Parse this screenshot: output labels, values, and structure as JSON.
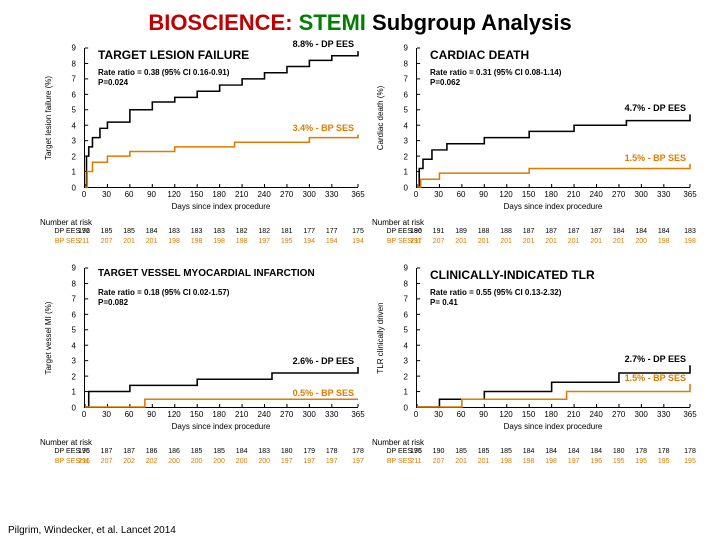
{
  "title_parts": [
    {
      "text": "BIOSCIENCE:",
      "color": "#c00000"
    },
    {
      "text": " STEMI",
      "color": "#008000"
    },
    {
      "text": " Subgroup Analysis",
      "color": "#000000"
    }
  ],
  "citation": "Pilgrim, Windecker, et al. Lancet 2014",
  "common": {
    "xlabel": "Days since index procedure",
    "xlim": [
      0,
      365
    ],
    "ylim": [
      0,
      9
    ],
    "xticks": [
      0,
      30,
      60,
      90,
      120,
      150,
      180,
      210,
      240,
      270,
      300,
      330,
      365
    ],
    "yticks": [
      0,
      1,
      2,
      3,
      4,
      5,
      6,
      7,
      8,
      9
    ],
    "colors": {
      "black": "#000000",
      "orange": "#e07b00"
    },
    "nar_title": "Number at risk",
    "nar_labels": [
      "DP EES",
      "BP SES"
    ],
    "nar_colors": [
      "#000000",
      "#e07b00"
    ]
  },
  "panels": [
    {
      "title": "TARGET LESION FAILURE",
      "ylabel": "Target lesion failure (%)",
      "rate": "Rate ratio = 0.38 (95% CI 0.16-0.91)",
      "p": "P=0.024",
      "end_black": {
        "text": "8.8% - DP EES",
        "y": 8.8
      },
      "end_orange": {
        "text": "3.4% - BP SES",
        "y": 3.4
      },
      "black": [
        [
          0,
          0
        ],
        [
          2,
          2.0
        ],
        [
          5,
          2.6
        ],
        [
          10,
          3.2
        ],
        [
          20,
          3.8
        ],
        [
          30,
          4.2
        ],
        [
          60,
          5.0
        ],
        [
          90,
          5.5
        ],
        [
          120,
          5.8
        ],
        [
          150,
          6.2
        ],
        [
          180,
          6.6
        ],
        [
          210,
          7.0
        ],
        [
          240,
          7.4
        ],
        [
          270,
          7.8
        ],
        [
          300,
          8.2
        ],
        [
          330,
          8.5
        ],
        [
          365,
          8.8
        ]
      ],
      "orange": [
        [
          0,
          0
        ],
        [
          3,
          1.0
        ],
        [
          10,
          1.6
        ],
        [
          30,
          2.0
        ],
        [
          60,
          2.3
        ],
        [
          120,
          2.6
        ],
        [
          200,
          2.9
        ],
        [
          300,
          3.2
        ],
        [
          365,
          3.4
        ]
      ],
      "nar": [
        [
          "196",
          "185",
          "185",
          "184",
          "183",
          "183",
          "183",
          "182",
          "182",
          "181",
          "177",
          "177",
          "175",
          "172"
        ],
        [
          "211",
          "207",
          "201",
          "201",
          "198",
          "198",
          "198",
          "198",
          "197",
          "195",
          "194",
          "194",
          "194",
          ""
        ]
      ]
    },
    {
      "title": "CARDIAC DEATH",
      "ylabel": "Cardiac death (%)",
      "rate": "Rate ratio = 0.31 (95% CI 0.08-1.14)",
      "p": "P=0.062",
      "end_black": {
        "text": "4.7% - DP EES",
        "y": 4.7
      },
      "end_orange": {
        "text": "1.5% - BP SES",
        "y": 1.5
      },
      "black": [
        [
          0,
          0
        ],
        [
          3,
          1.2
        ],
        [
          8,
          1.8
        ],
        [
          20,
          2.4
        ],
        [
          40,
          2.8
        ],
        [
          90,
          3.2
        ],
        [
          150,
          3.6
        ],
        [
          210,
          4.0
        ],
        [
          280,
          4.3
        ],
        [
          365,
          4.7
        ]
      ],
      "orange": [
        [
          0,
          0
        ],
        [
          5,
          0.5
        ],
        [
          30,
          0.9
        ],
        [
          150,
          1.2
        ],
        [
          365,
          1.5
        ]
      ],
      "nar": [
        [
          "196",
          "191",
          "189",
          "188",
          "188",
          "187",
          "187",
          "187",
          "187",
          "184",
          "184",
          "184",
          "183",
          "180"
        ],
        [
          "211",
          "207",
          "201",
          "201",
          "201",
          "201",
          "201",
          "201",
          "201",
          "201",
          "200",
          "198",
          "198",
          "197"
        ]
      ]
    },
    {
      "title": "TARGET VESSEL MYOCARDIAL INFARCTION",
      "ylabel": "Target vessel MI (%)",
      "rate": "Rate ratio = 0.18 (95% CI 0.02-1.57)",
      "p": "P=0.082",
      "end_black": {
        "text": "2.6% - DP EES",
        "y": 2.6
      },
      "end_orange": {
        "text": "0.5% - BP SES",
        "y": 0.5
      },
      "black": [
        [
          0,
          0
        ],
        [
          5,
          1.0
        ],
        [
          60,
          1.4
        ],
        [
          150,
          1.8
        ],
        [
          250,
          2.2
        ],
        [
          365,
          2.6
        ]
      ],
      "orange": [
        [
          0,
          0
        ],
        [
          80,
          0.5
        ],
        [
          365,
          0.5
        ]
      ],
      "nar": [
        [
          "196",
          "187",
          "187",
          "186",
          "186",
          "185",
          "185",
          "184",
          "183",
          "180",
          "179",
          "178",
          "178",
          "175"
        ],
        [
          "211",
          "207",
          "202",
          "202",
          "200",
          "200",
          "200",
          "200",
          "200",
          "197",
          "197",
          "197",
          "197",
          "196"
        ]
      ]
    },
    {
      "title": "CLINICALLY-INDICATED TLR",
      "ylabel": "TLR clinically driven",
      "rate": "Rate ratio = 0.55 (95% CI 0.13-2.32)",
      "p": "P= 0.41",
      "end_black": {
        "text": "2.7% - DP EES",
        "y": 2.7
      },
      "end_orange": {
        "text": "1.5% - BP SES",
        "y": 1.5
      },
      "black": [
        [
          0,
          0
        ],
        [
          30,
          0.5
        ],
        [
          90,
          1.0
        ],
        [
          180,
          1.6
        ],
        [
          270,
          2.2
        ],
        [
          365,
          2.7
        ]
      ],
      "orange": [
        [
          0,
          0
        ],
        [
          60,
          0.5
        ],
        [
          200,
          1.0
        ],
        [
          365,
          1.5
        ]
      ],
      "nar": [
        [
          "196",
          "190",
          "185",
          "185",
          "185",
          "184",
          "184",
          "184",
          "184",
          "180",
          "178",
          "178",
          "178",
          "175"
        ],
        [
          "211",
          "207",
          "201",
          "201",
          "198",
          "198",
          "198",
          "197",
          "196",
          "195",
          "195",
          "195",
          "195",
          ""
        ]
      ]
    }
  ]
}
